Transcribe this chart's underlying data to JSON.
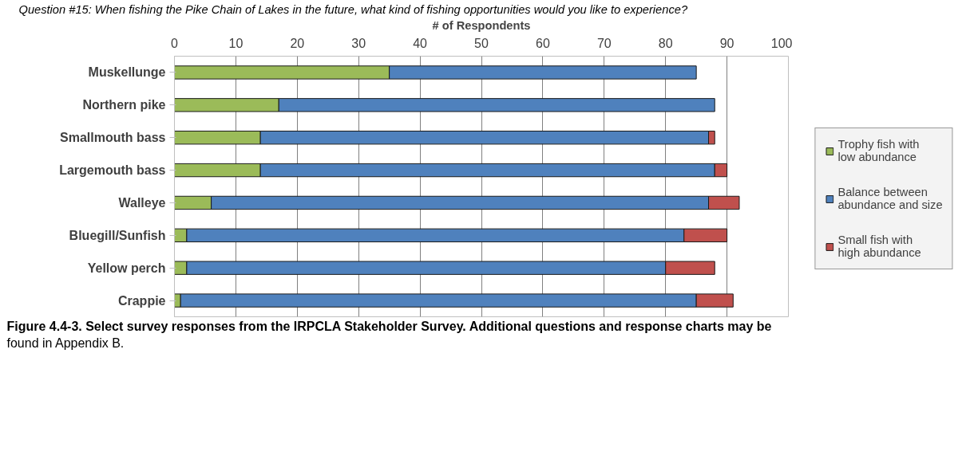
{
  "chart_data": {
    "type": "bar",
    "orientation": "horizontal",
    "stacked": true,
    "title": "Question #15: When fishing the Pike Chain of Lakes in the future, what kind of fishing opportunities would you like to experience?",
    "xlabel": "# of Respondents",
    "categories": [
      "Muskellunge",
      "Northern pike",
      "Smallmouth bass",
      "Largemouth bass",
      "Walleye",
      "Bluegill/Sunfish",
      "Yellow perch",
      "Crappie"
    ],
    "series": [
      {
        "name": "Trophy fish with low abundance",
        "color": "#9bbb59",
        "values": [
          35,
          17,
          14,
          14,
          6,
          2,
          2,
          1
        ]
      },
      {
        "name": "Balance between abundance and size",
        "color": "#4f81bd",
        "values": [
          50,
          71,
          73,
          74,
          81,
          81,
          78,
          84
        ]
      },
      {
        "name": "Small fish with high abundance",
        "color": "#c0504d",
        "values": [
          null,
          null,
          1,
          2,
          5,
          7,
          8,
          6
        ]
      }
    ],
    "xlim": [
      0,
      100
    ],
    "xticks": [
      0,
      10,
      20,
      30,
      40,
      50,
      60,
      70,
      80,
      90,
      100
    ],
    "grid": "x",
    "legend": "right",
    "annotations": [
      "Figure 4.4-3.  Select survey responses from the IRPCLA Stakeholder Survey.  Additional questions and response charts may be found in Appendix B."
    ]
  }
}
